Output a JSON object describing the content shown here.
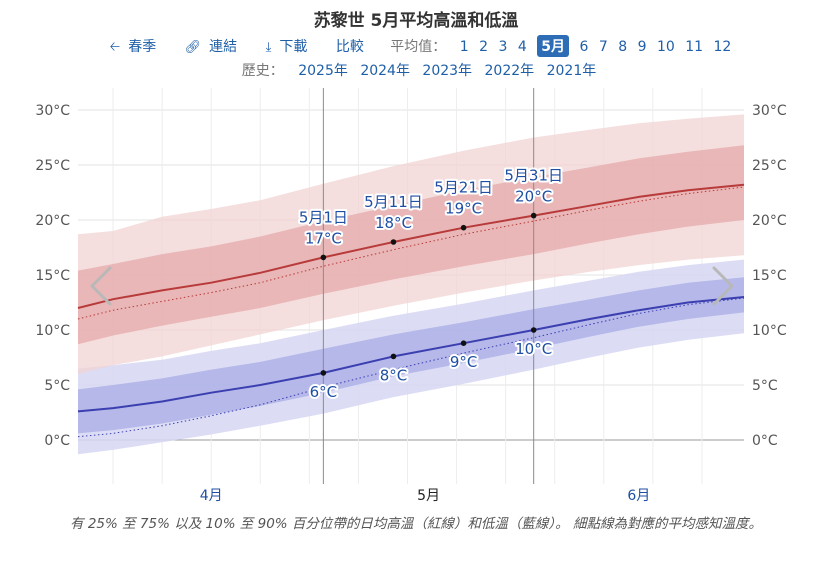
{
  "page": {
    "title": "苏黎世 5月平均高溫和低溫",
    "nav": {
      "season": "春季",
      "link": "連結",
      "download": "下載",
      "compare": "比較",
      "average_label": "平均值：",
      "months": [
        "1",
        "2",
        "3",
        "4",
        "5",
        "6",
        "7",
        "8",
        "9",
        "10",
        "11",
        "12"
      ],
      "selected_month": "5月",
      "history_label": "歷史：",
      "years": [
        "2025年",
        "2024年",
        "2023年",
        "2022年",
        "2021年"
      ]
    },
    "caption": "有 25% 至 75% 以及 10% 至 90% 百分位帶的日均高溫（紅線）和低溫（藍線）。 細點線為對應的平均感知溫度。",
    "icons": {
      "season": "arrow-left-icon",
      "link": "link-icon",
      "download": "download-icon",
      "prev": "chevron-left-icon",
      "next": "chevron-right-icon"
    }
  },
  "chart_data": {
    "type": "area",
    "title": "苏黎世 5月平均高溫和低溫",
    "x_range": [
      "2025-03-27",
      "2025-06-30"
    ],
    "y_range": [
      -4,
      32
    ],
    "y_ticks": [
      0,
      5,
      10,
      15,
      20,
      25,
      30
    ],
    "y_tick_labels": [
      "0°C",
      "5°C",
      "10°C",
      "15°C",
      "20°C",
      "25°C",
      "30°C"
    ],
    "x_month_labels": [
      {
        "date": "2025-04-15",
        "label": "4月"
      },
      {
        "date": "2025-05-16",
        "label": "5月"
      },
      {
        "date": "2025-06-15",
        "label": "6月"
      }
    ],
    "grid": true,
    "colors": {
      "high_line": "#b83a3a",
      "high_band_inner": "#e4a6a6",
      "high_band_outer": "#f2d3d3",
      "low_line": "#3b3fb0",
      "low_band_inner": "#aeb1e6",
      "low_band_outer": "#d6d7f3",
      "label": "#1f4fa3"
    },
    "dates": [
      "2025-03-27",
      "2025-04-01",
      "2025-04-08",
      "2025-04-15",
      "2025-04-22",
      "2025-05-01",
      "2025-05-11",
      "2025-05-21",
      "2025-05-31",
      "2025-06-08",
      "2025-06-15",
      "2025-06-22",
      "2025-06-30"
    ],
    "high": {
      "mean": [
        12.0,
        12.8,
        13.6,
        14.3,
        15.2,
        16.6,
        18.0,
        19.3,
        20.4,
        21.3,
        22.1,
        22.7,
        23.2
      ],
      "p25": [
        8.7,
        9.5,
        10.4,
        11.2,
        12.0,
        13.3,
        14.6,
        15.8,
        16.9,
        17.9,
        18.7,
        19.4,
        20.0
      ],
      "p75": [
        15.4,
        16.0,
        16.9,
        17.6,
        18.5,
        19.9,
        21.3,
        22.7,
        23.9,
        24.8,
        25.6,
        26.2,
        26.8
      ],
      "p10": [
        6.0,
        6.8,
        7.6,
        8.6,
        9.6,
        10.9,
        12.2,
        13.4,
        14.5,
        15.3,
        15.9,
        16.4,
        16.8
      ],
      "p90": [
        18.7,
        19.0,
        20.3,
        21.0,
        21.8,
        23.3,
        24.9,
        26.3,
        27.5,
        28.2,
        28.8,
        29.2,
        29.6
      ],
      "feels_like": [
        11.0,
        11.8,
        12.6,
        13.4,
        14.3,
        15.8,
        17.3,
        18.7,
        19.9,
        20.9,
        21.7,
        22.4,
        23.0
      ]
    },
    "low": {
      "mean": [
        2.6,
        2.9,
        3.5,
        4.3,
        5.0,
        6.1,
        7.6,
        8.8,
        10.0,
        11.0,
        11.8,
        12.5,
        13.0
      ],
      "p25": [
        0.6,
        0.9,
        1.5,
        2.3,
        3.1,
        4.3,
        5.8,
        7.0,
        8.3,
        9.4,
        10.3,
        11.0,
        11.6
      ],
      "p75": [
        4.6,
        5.0,
        5.6,
        6.4,
        7.1,
        8.3,
        9.6,
        10.7,
        11.9,
        12.8,
        13.6,
        14.3,
        14.8
      ],
      "p10": [
        -1.3,
        -0.9,
        -0.2,
        0.5,
        1.3,
        2.4,
        3.9,
        5.1,
        6.4,
        7.5,
        8.4,
        9.1,
        9.7
      ],
      "p90": [
        6.5,
        6.8,
        7.3,
        8.1,
        8.8,
        10.0,
        11.3,
        12.4,
        13.6,
        14.5,
        15.3,
        15.9,
        16.4
      ],
      "feels_like": [
        0.3,
        0.6,
        1.3,
        2.2,
        3.2,
        4.8,
        6.4,
        7.9,
        9.3,
        10.5,
        11.5,
        12.3,
        12.9
      ]
    },
    "annotations_high": [
      {
        "date": "2025-05-01",
        "value": 16.6,
        "day_label": "5月1日",
        "temp_label": "17°C"
      },
      {
        "date": "2025-05-11",
        "value": 18.0,
        "day_label": "5月11日",
        "temp_label": "18°C"
      },
      {
        "date": "2025-05-21",
        "value": 19.3,
        "day_label": "5月21日",
        "temp_label": "19°C"
      },
      {
        "date": "2025-05-31",
        "value": 20.4,
        "day_label": "5月31日",
        "temp_label": "20°C"
      }
    ],
    "annotations_low": [
      {
        "date": "2025-05-01",
        "value": 6.1,
        "temp_label": "6°C"
      },
      {
        "date": "2025-05-11",
        "value": 7.6,
        "temp_label": "8°C"
      },
      {
        "date": "2025-05-21",
        "value": 8.8,
        "temp_label": "9°C"
      },
      {
        "date": "2025-05-31",
        "value": 10.0,
        "temp_label": "10°C"
      }
    ],
    "month_dividers": [
      "2025-05-01",
      "2025-05-31"
    ]
  }
}
